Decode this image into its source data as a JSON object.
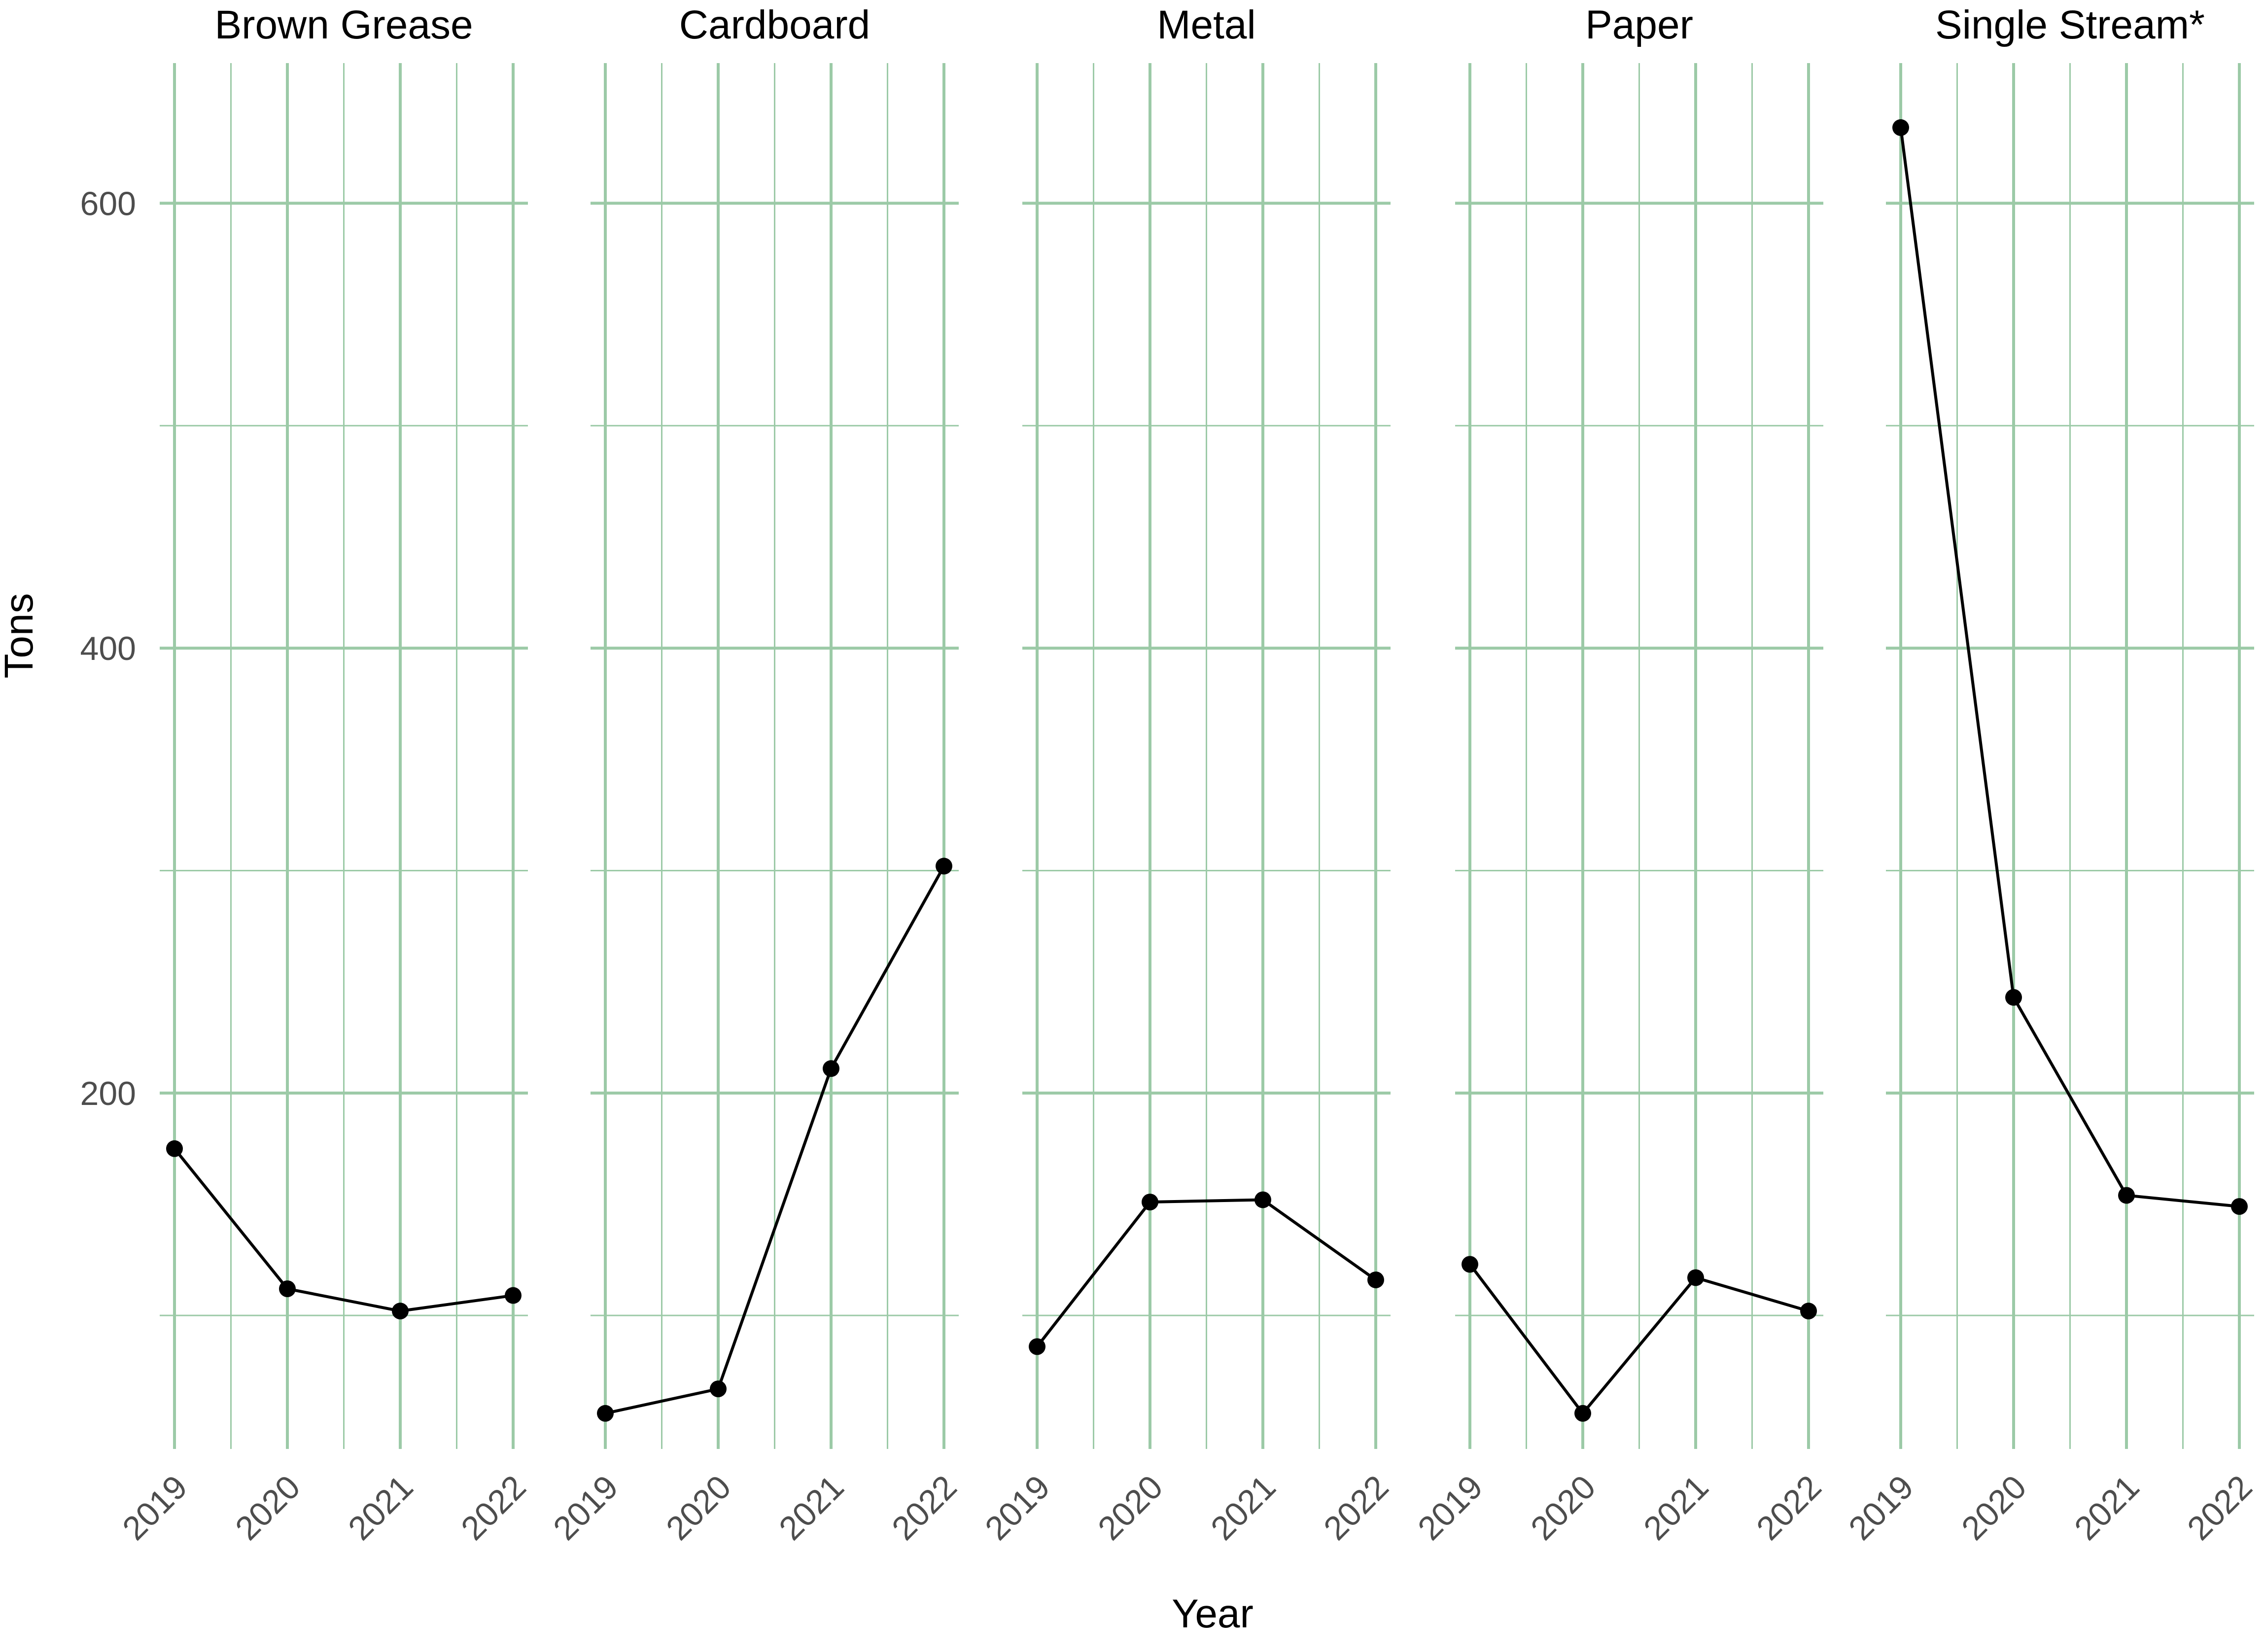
{
  "chart_data": {
    "type": "line",
    "xlabel": "Year",
    "ylabel": "Tons",
    "x": [
      "2019",
      "2020",
      "2021",
      "2022"
    ],
    "ylim": [
      40,
      663
    ],
    "y_ticks": [
      200,
      400,
      600
    ],
    "grid": true,
    "grid_color": "#9ccaa7",
    "line_color": "#000000",
    "point_color": "#000000",
    "panels": [
      {
        "name": "Brown Grease",
        "values": [
          175,
          112,
          102,
          109
        ]
      },
      {
        "name": "Cardboard",
        "values": [
          56,
          67,
          211,
          302
        ]
      },
      {
        "name": "Metal",
        "values": [
          86,
          151,
          152,
          116
        ]
      },
      {
        "name": "Paper",
        "values": [
          123,
          56,
          117,
          102
        ]
      },
      {
        "name": "Single Stream*",
        "values": [
          634,
          243,
          154,
          149
        ]
      }
    ]
  }
}
